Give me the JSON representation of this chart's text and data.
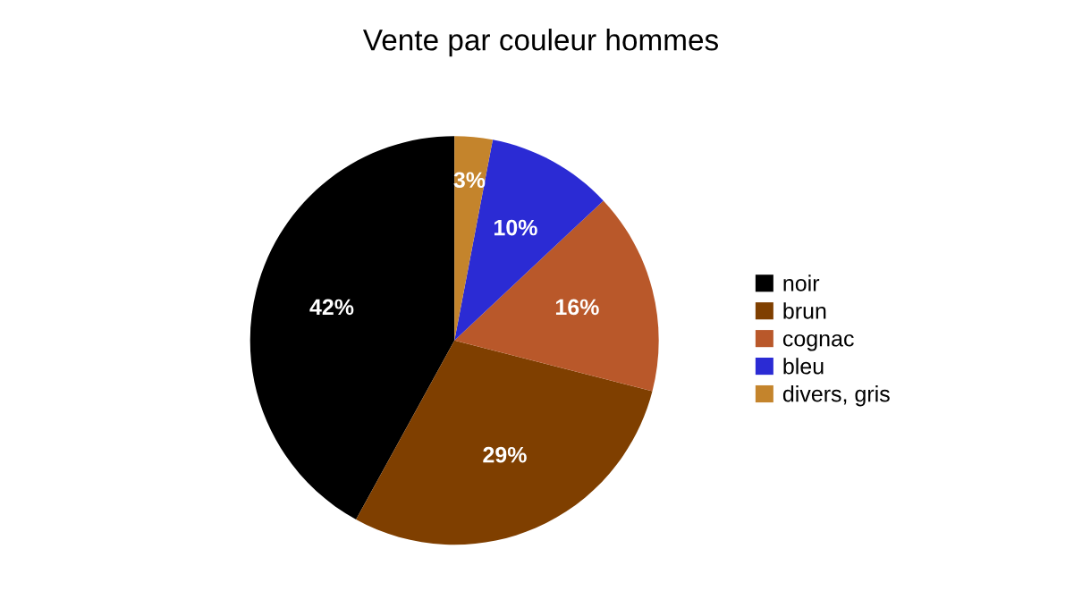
{
  "chart_data": {
    "type": "pie",
    "title": "Vente par couleur hommes",
    "categories": [
      "noir",
      "brun",
      "cognac",
      "bleu",
      "divers, gris"
    ],
    "values": [
      42,
      29,
      16,
      10,
      3
    ],
    "colors": [
      "#000000",
      "#7f3f00",
      "#b9582a",
      "#2b2bd4",
      "#c4842c"
    ],
    "value_labels": [
      "42%",
      "29%",
      "16%",
      "10%",
      "3%"
    ],
    "legend": "right"
  }
}
